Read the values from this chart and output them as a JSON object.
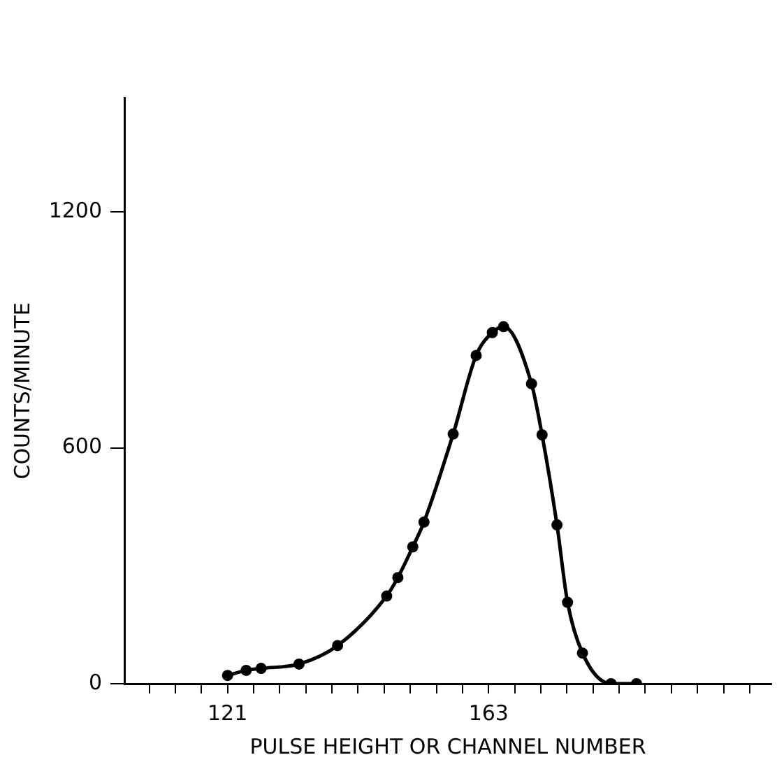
{
  "chart_data": {
    "type": "line",
    "xlabel": "PULSE HEIGHT OR CHANNEL NUMBER",
    "ylabel": "COUNTS/MINUTE",
    "x": [
      121,
      124.0,
      126.4,
      132.5,
      138.7,
      146.6,
      148.4,
      150.8,
      152.6,
      157.3,
      161.0,
      163.6,
      165.4,
      169.9,
      171.6,
      174.0,
      175.7,
      178.1,
      182.7,
      186.8
    ],
    "series": [
      {
        "color": "#000000",
        "values": [
          21,
          34,
          39,
          50,
          97,
          223,
          270,
          348,
          411,
          635,
          835,
          893,
          908,
          763,
          633,
          404,
          207,
          78,
          0,
          0
        ]
      }
    ],
    "xlim": [
      104.4,
      208.5
    ],
    "xticks": [
      {
        "value": 108.4,
        "label": null
      },
      {
        "value": 112.6,
        "label": null
      },
      {
        "value": 116.8,
        "label": null
      },
      121,
      {
        "value": 125.2,
        "label": null
      },
      {
        "value": 129.4,
        "label": null
      },
      {
        "value": 133.6,
        "label": null
      },
      {
        "value": 137.8,
        "label": null
      },
      {
        "value": 142,
        "label": null
      },
      {
        "value": 146.2,
        "label": null
      },
      {
        "value": 150.4,
        "label": null
      },
      {
        "value": 154.6,
        "label": null
      },
      {
        "value": 158.8,
        "label": null
      },
      163,
      {
        "value": 167.2,
        "label": null
      },
      {
        "value": 171.4,
        "label": null
      },
      {
        "value": 175.6,
        "label": null
      },
      {
        "value": 179.8,
        "label": null
      },
      {
        "value": 184,
        "label": null
      },
      {
        "value": 188.2,
        "label": null
      },
      {
        "value": 192.4,
        "label": null
      },
      {
        "value": 196.6,
        "label": null
      },
      {
        "value": 200.8,
        "label": null
      },
      {
        "value": 205,
        "label": null
      }
    ],
    "ylim": [
      0,
      1490
    ],
    "yticks": [
      0,
      600,
      1200
    ],
    "grid": false,
    "legend": false,
    "marker": "circle",
    "line_style": "solid"
  }
}
